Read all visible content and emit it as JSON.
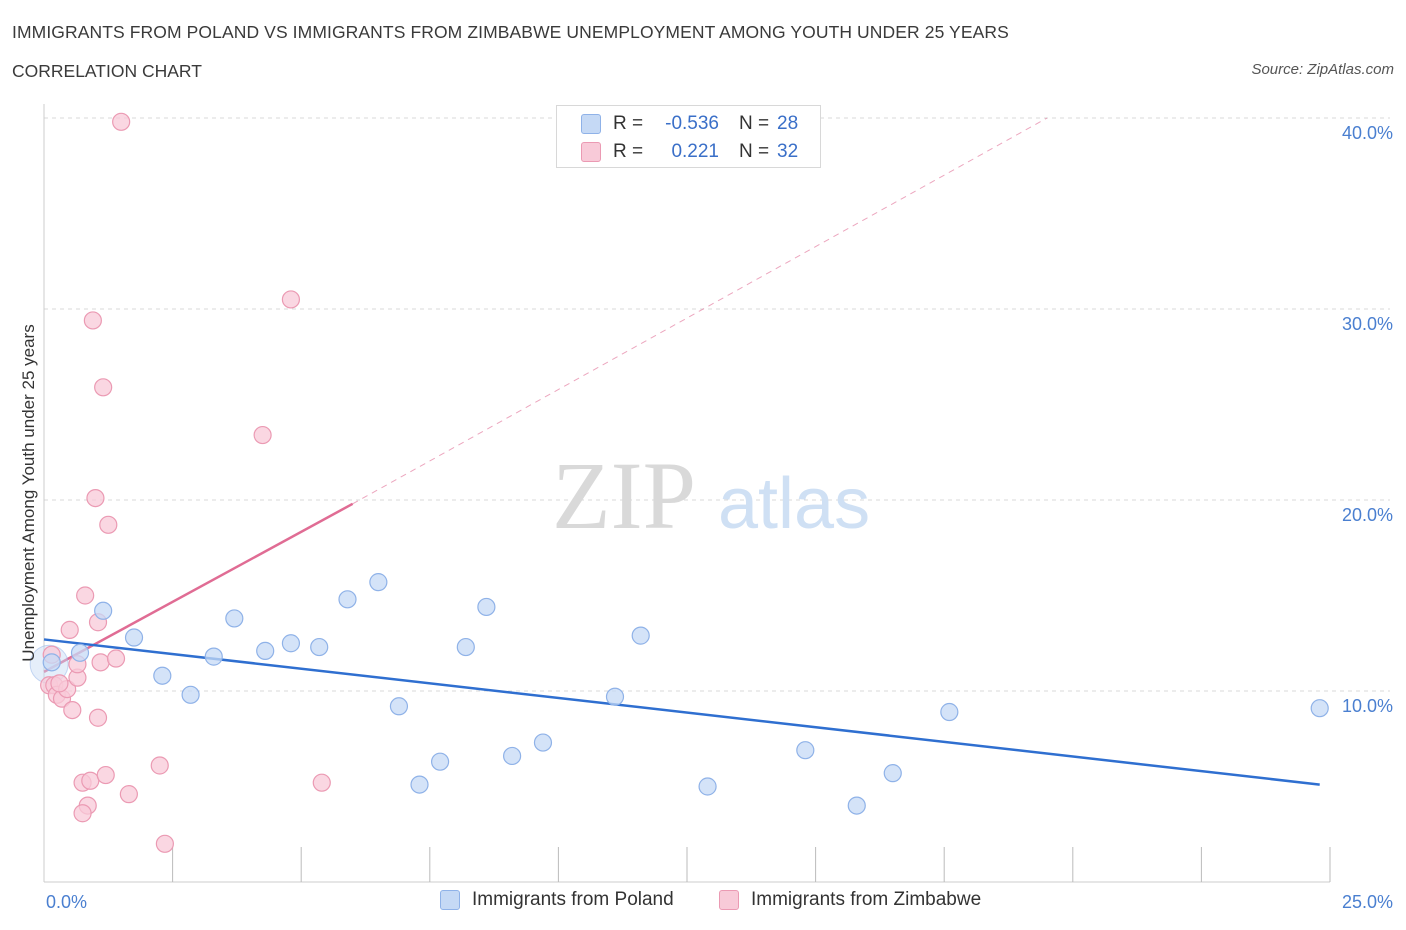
{
  "header": {
    "title": "IMMIGRANTS FROM POLAND VS IMMIGRANTS FROM ZIMBABWE UNEMPLOYMENT AMONG YOUTH UNDER 25 YEARS",
    "subtitle": "CORRELATION CHART",
    "source": "Source: ZipAtlas.com"
  },
  "watermark": {
    "zip": "ZIP",
    "atlas": "atlas"
  },
  "legend_top": {
    "poland": {
      "r_label": "R =",
      "r_value": "-0.536",
      "n_label": "N =",
      "n_value": "28"
    },
    "zimbabwe": {
      "r_label": "R =",
      "r_value": "0.221",
      "n_label": "N =",
      "n_value": "32"
    }
  },
  "legend_bottom": {
    "poland": "Immigrants from Poland",
    "zimbabwe": "Immigrants from Zimbabwe"
  },
  "colors": {
    "poland_fill": "#c5d9f5",
    "poland_stroke": "#8fb2e8",
    "poland_line": "#2f6fd0",
    "zimbabwe_fill": "#f8cad8",
    "zimbabwe_stroke": "#eb9ab3",
    "zimbabwe_line": "#e06c94",
    "grid": "#d8d8d8",
    "tick_label": "#4a7fd0"
  },
  "chart_data": {
    "type": "scatter",
    "title": "IMMIGRANTS FROM POLAND VS IMMIGRANTS FROM ZIMBABWE UNEMPLOYMENT AMONG YOUTH UNDER 25 YEARS",
    "xlabel": "",
    "ylabel": "Unemployment Among Youth under 25 years",
    "xlim": [
      0,
      25
    ],
    "ylim": [
      0,
      40
    ],
    "x_tick_labels": [
      "0.0%",
      "25.0%"
    ],
    "y_ticks": [
      10,
      20,
      30,
      40
    ],
    "y_tick_labels": [
      "10.0%",
      "20.0%",
      "30.0%",
      "40.0%"
    ],
    "series": [
      {
        "name": "Immigrants from Poland",
        "r": -0.536,
        "n": 28,
        "points": [
          [
            0.15,
            11.5
          ],
          [
            0.7,
            12.0
          ],
          [
            1.15,
            14.2
          ],
          [
            1.75,
            12.8
          ],
          [
            2.3,
            10.8
          ],
          [
            2.85,
            9.8
          ],
          [
            3.3,
            11.8
          ],
          [
            3.7,
            13.8
          ],
          [
            4.3,
            12.1
          ],
          [
            4.8,
            12.5
          ],
          [
            5.35,
            12.3
          ],
          [
            5.9,
            14.8
          ],
          [
            6.5,
            15.7
          ],
          [
            6.9,
            9.2
          ],
          [
            7.3,
            5.1
          ],
          [
            7.7,
            6.3
          ],
          [
            8.2,
            12.3
          ],
          [
            8.6,
            14.4
          ],
          [
            9.1,
            6.6
          ],
          [
            9.7,
            7.3
          ],
          [
            11.1,
            9.7
          ],
          [
            11.6,
            12.9
          ],
          [
            12.9,
            5.0
          ],
          [
            14.8,
            6.9
          ],
          [
            15.8,
            4.0
          ],
          [
            16.5,
            5.7
          ],
          [
            17.6,
            8.9
          ],
          [
            24.8,
            9.1
          ]
        ],
        "trend": {
          "x0": 0.0,
          "y0": 12.7,
          "x1": 24.8,
          "y1": 5.1
        }
      },
      {
        "name": "Immigrants from Zimbabwe",
        "r": 0.221,
        "n": 32,
        "points": [
          [
            0.1,
            10.3
          ],
          [
            0.2,
            10.3
          ],
          [
            0.25,
            9.8
          ],
          [
            0.35,
            9.6
          ],
          [
            0.45,
            10.1
          ],
          [
            0.5,
            13.2
          ],
          [
            0.55,
            9.0
          ],
          [
            0.65,
            10.7
          ],
          [
            0.65,
            11.4
          ],
          [
            0.75,
            5.2
          ],
          [
            0.85,
            4.0
          ],
          [
            0.75,
            3.6
          ],
          [
            0.8,
            15.0
          ],
          [
            0.9,
            5.3
          ],
          [
            0.95,
            29.4
          ],
          [
            1.0,
            20.1
          ],
          [
            1.05,
            13.6
          ],
          [
            1.05,
            8.6
          ],
          [
            1.1,
            11.5
          ],
          [
            1.15,
            25.9
          ],
          [
            1.2,
            5.6
          ],
          [
            1.25,
            18.7
          ],
          [
            1.4,
            11.7
          ],
          [
            1.65,
            4.6
          ],
          [
            1.5,
            39.8
          ],
          [
            2.25,
            6.1
          ],
          [
            2.35,
            2.0
          ],
          [
            4.25,
            23.4
          ],
          [
            4.8,
            30.5
          ],
          [
            5.4,
            5.2
          ],
          [
            0.15,
            11.9
          ],
          [
            0.3,
            10.4
          ]
        ],
        "trend": {
          "x0": 0.0,
          "y0": 11.0,
          "x1": 6.0,
          "y1": 19.8
        },
        "trend_extension": {
          "x0": 6.0,
          "y0": 19.8,
          "x1": 19.5,
          "y1": 40.0
        }
      }
    ]
  }
}
